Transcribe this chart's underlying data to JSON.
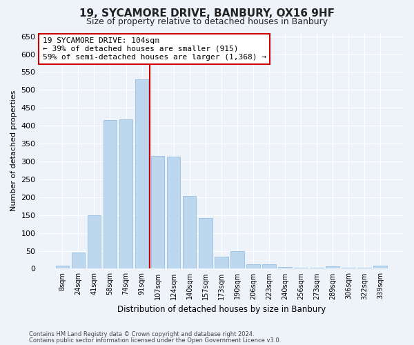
{
  "title": "19, SYCAMORE DRIVE, BANBURY, OX16 9HF",
  "subtitle": "Size of property relative to detached houses in Banbury",
  "xlabel": "Distribution of detached houses by size in Banbury",
  "ylabel": "Number of detached properties",
  "categories": [
    "8sqm",
    "24sqm",
    "41sqm",
    "58sqm",
    "74sqm",
    "91sqm",
    "107sqm",
    "124sqm",
    "140sqm",
    "157sqm",
    "173sqm",
    "190sqm",
    "206sqm",
    "223sqm",
    "240sqm",
    "256sqm",
    "273sqm",
    "289sqm",
    "306sqm",
    "322sqm",
    "339sqm"
  ],
  "values": [
    8,
    45,
    150,
    415,
    418,
    530,
    315,
    313,
    204,
    142,
    33,
    50,
    13,
    12,
    5,
    2,
    2,
    7,
    2,
    2,
    8
  ],
  "bar_color": "#bdd7ee",
  "bar_edge_color": "#9dc3e6",
  "vline_color": "#cc0000",
  "annotation_text": "19 SYCAMORE DRIVE: 104sqm\n← 39% of detached houses are smaller (915)\n59% of semi-detached houses are larger (1,368) →",
  "annotation_box_color": "#ffffff",
  "annotation_box_edgecolor": "#cc0000",
  "ylim": [
    0,
    660
  ],
  "yticks": [
    0,
    50,
    100,
    150,
    200,
    250,
    300,
    350,
    400,
    450,
    500,
    550,
    600,
    650
  ],
  "bg_color": "#eef2f9",
  "grid_color": "#ffffff",
  "footer1": "Contains HM Land Registry data © Crown copyright and database right 2024.",
  "footer2": "Contains public sector information licensed under the Open Government Licence v3.0."
}
